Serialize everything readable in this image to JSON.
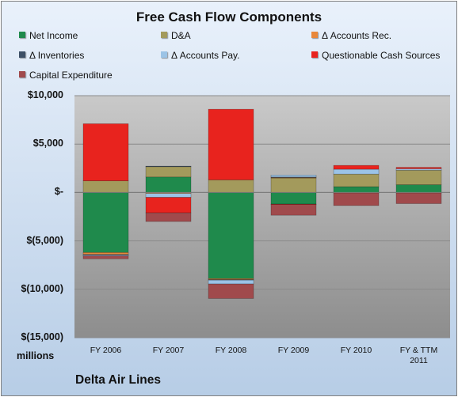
{
  "chart_data": {
    "type": "bar",
    "stacked": true,
    "title": "Free Cash Flow Components",
    "units_label": "millions",
    "company": "Delta Air Lines",
    "categories": [
      "FY 2006",
      "FY 2007",
      "FY 2008",
      "FY 2009",
      "FY 2010",
      "FY & TTM 2011"
    ],
    "ylim": [
      -15000,
      10000
    ],
    "ytick_values": [
      10000,
      5000,
      0,
      -5000,
      -10000,
      -15000
    ],
    "ytick_labels": [
      "$10,000",
      "$5,000",
      "$-",
      "$(5,000)",
      "$(10,000)",
      "$(15,000)"
    ],
    "grid": true,
    "legend_position": "top",
    "series": [
      {
        "name": "Net Income",
        "color": "#1f8a4c",
        "values": [
          -6200,
          1600,
          -8900,
          -1200,
          600,
          800
        ]
      },
      {
        "name": "D&A",
        "color": "#a39a5c",
        "values": [
          1200,
          1100,
          1300,
          1500,
          1300,
          1500
        ]
      },
      {
        "name": "Δ Accounts Rec.",
        "color": "#e8873a",
        "values": [
          -200,
          -100,
          -100,
          50,
          -50,
          -50
        ]
      },
      {
        "name": "Δ Inventories",
        "color": "#3d4f66",
        "values": [
          -50,
          20,
          -50,
          50,
          0,
          0
        ]
      },
      {
        "name": "Δ Accounts Pay.",
        "color": "#9bc3e6",
        "values": [
          -100,
          -400,
          -400,
          200,
          500,
          150
        ]
      },
      {
        "name": "Questionable Cash Sources",
        "color": "#e8231e",
        "values": [
          5900,
          -1600,
          7300,
          -50,
          400,
          150
        ]
      },
      {
        "name": "Capital Expenditure",
        "color": "#a04a4c",
        "values": [
          -300,
          -900,
          -1500,
          -1100,
          -1300,
          -1100
        ]
      }
    ]
  }
}
